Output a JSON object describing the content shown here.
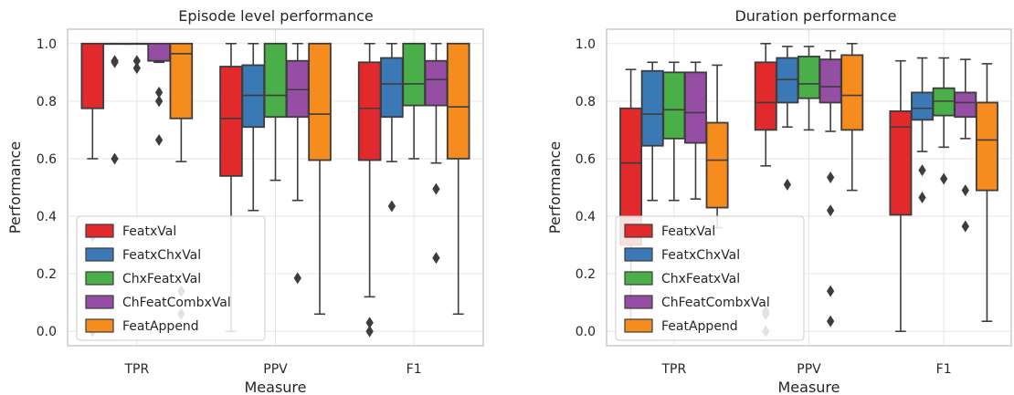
{
  "colors": {
    "FeatxVal": "#e2292c",
    "FeatxChxVal": "#3a78b6",
    "ChxFeatxVal": "#4aaf48",
    "ChFeatCombxVal": "#964ea4",
    "FeatAppend": "#f68b1e"
  },
  "chart_data": [
    {
      "type": "box",
      "title": "Episode level performance",
      "xlabel": "Measure",
      "ylabel": "Performance",
      "ylim": [
        -0.05,
        1.05
      ],
      "yticks": [
        "0.0",
        "0.2",
        "0.4",
        "0.6",
        "0.8",
        "1.0"
      ],
      "categories": [
        "TPR",
        "PPV",
        "F1"
      ],
      "legend": [
        "FeatxVal",
        "FeatxChxVal",
        "ChxFeatxVal",
        "ChFeatCombxVal",
        "FeatAppend"
      ],
      "legend_position": "lower-left",
      "grid": true,
      "series": [
        {
          "name": "FeatxVal",
          "boxes": [
            {
              "wlo": 0.6,
              "q1": 0.775,
              "med": 1.0,
              "q3": 1.0,
              "whi": 1.0,
              "fliers": [
                0.33,
                0.0
              ]
            },
            {
              "wlo": 0.0,
              "q1": 0.54,
              "med": 0.74,
              "q3": 0.92,
              "whi": 1.0,
              "fliers": []
            },
            {
              "wlo": 0.12,
              "q1": 0.595,
              "med": 0.775,
              "q3": 0.935,
              "whi": 1.0,
              "fliers": [
                0.03,
                0.0
              ]
            }
          ]
        },
        {
          "name": "FeatxChxVal",
          "boxes": [
            {
              "wlo": 1.0,
              "q1": 1.0,
              "med": 1.0,
              "q3": 1.0,
              "whi": 1.0,
              "fliers": [
                0.935,
                0.94,
                0.6
              ]
            },
            {
              "wlo": 0.42,
              "q1": 0.71,
              "med": 0.82,
              "q3": 0.925,
              "whi": 1.0,
              "fliers": []
            },
            {
              "wlo": 0.59,
              "q1": 0.745,
              "med": 0.86,
              "q3": 0.95,
              "whi": 1.0,
              "fliers": [
                0.435
              ]
            }
          ]
        },
        {
          "name": "ChxFeatxVal",
          "boxes": [
            {
              "wlo": 1.0,
              "q1": 1.0,
              "med": 1.0,
              "q3": 1.0,
              "whi": 1.0,
              "fliers": [
                0.94,
                0.915
              ]
            },
            {
              "wlo": 0.525,
              "q1": 0.745,
              "med": 0.82,
              "q3": 1.0,
              "whi": 1.0,
              "fliers": []
            },
            {
              "wlo": 0.6,
              "q1": 0.785,
              "med": 0.86,
              "q3": 1.0,
              "whi": 1.0,
              "fliers": []
            }
          ]
        },
        {
          "name": "ChFeatCombxVal",
          "boxes": [
            {
              "wlo": 0.935,
              "q1": 0.94,
              "med": 1.0,
              "q3": 1.0,
              "whi": 1.0,
              "fliers": [
                0.83,
                0.8,
                0.665
              ]
            },
            {
              "wlo": 0.455,
              "q1": 0.745,
              "med": 0.84,
              "q3": 0.94,
              "whi": 1.0,
              "fliers": [
                0.185
              ]
            },
            {
              "wlo": 0.585,
              "q1": 0.785,
              "med": 0.875,
              "q3": 0.94,
              "whi": 1.0,
              "fliers": [
                0.495,
                0.255
              ]
            }
          ]
        },
        {
          "name": "FeatAppend",
          "boxes": [
            {
              "wlo": 0.59,
              "q1": 0.74,
              "med": 0.965,
              "q3": 1.0,
              "whi": 1.0,
              "fliers": [
                0.14,
                0.06
              ]
            },
            {
              "wlo": 0.06,
              "q1": 0.595,
              "med": 0.755,
              "q3": 1.0,
              "whi": 1.0,
              "fliers": []
            },
            {
              "wlo": 0.06,
              "q1": 0.6,
              "med": 0.78,
              "q3": 1.0,
              "whi": 1.0,
              "fliers": []
            }
          ]
        }
      ]
    },
    {
      "type": "box",
      "title": "Duration performance",
      "xlabel": "Measure",
      "ylabel": "Performance",
      "ylim": [
        -0.05,
        1.05
      ],
      "yticks": [
        "0.0",
        "0.2",
        "0.4",
        "0.6",
        "0.8",
        "1.0"
      ],
      "categories": [
        "TPR",
        "PPV",
        "F1"
      ],
      "legend": [
        "FeatxVal",
        "FeatxChxVal",
        "ChxFeatxVal",
        "ChFeatCombxVal",
        "FeatAppend"
      ],
      "legend_position": "lower-left",
      "grid": true,
      "series": [
        {
          "name": "FeatxVal",
          "boxes": [
            {
              "wlo": 0.0,
              "q1": 0.3,
              "med": 0.585,
              "q3": 0.775,
              "whi": 0.91,
              "fliers": []
            },
            {
              "wlo": 0.575,
              "q1": 0.7,
              "med": 0.795,
              "q3": 0.935,
              "whi": 1.0,
              "fliers": [
                0.07,
                0.06,
                0.0
              ]
            },
            {
              "wlo": 0.0,
              "q1": 0.405,
              "med": 0.71,
              "q3": 0.765,
              "whi": 0.94,
              "fliers": []
            }
          ]
        },
        {
          "name": "FeatxChxVal",
          "boxes": [
            {
              "wlo": 0.455,
              "q1": 0.645,
              "med": 0.755,
              "q3": 0.905,
              "whi": 0.935,
              "fliers": []
            },
            {
              "wlo": 0.71,
              "q1": 0.795,
              "med": 0.875,
              "q3": 0.95,
              "whi": 0.99,
              "fliers": [
                0.51
              ]
            },
            {
              "wlo": 0.625,
              "q1": 0.735,
              "med": 0.775,
              "q3": 0.83,
              "whi": 0.95,
              "fliers": [
                0.56,
                0.465
              ]
            }
          ]
        },
        {
          "name": "ChxFeatxVal",
          "boxes": [
            {
              "wlo": 0.455,
              "q1": 0.67,
              "med": 0.77,
              "q3": 0.9,
              "whi": 0.935,
              "fliers": []
            },
            {
              "wlo": 0.7,
              "q1": 0.81,
              "med": 0.86,
              "q3": 0.955,
              "whi": 0.99,
              "fliers": []
            },
            {
              "wlo": 0.64,
              "q1": 0.75,
              "med": 0.8,
              "q3": 0.845,
              "whi": 0.95,
              "fliers": [
                0.53
              ]
            }
          ]
        },
        {
          "name": "ChFeatCombxVal",
          "boxes": [
            {
              "wlo": 0.46,
              "q1": 0.655,
              "med": 0.76,
              "q3": 0.9,
              "whi": 0.935,
              "fliers": []
            },
            {
              "wlo": 0.695,
              "q1": 0.795,
              "med": 0.85,
              "q3": 0.945,
              "whi": 0.975,
              "fliers": [
                0.535,
                0.42,
                0.14,
                0.035
              ]
            },
            {
              "wlo": 0.67,
              "q1": 0.745,
              "med": 0.795,
              "q3": 0.83,
              "whi": 0.945,
              "fliers": [
                0.49,
                0.365
              ]
            }
          ]
        },
        {
          "name": "FeatAppend",
          "boxes": [
            {
              "wlo": 0.36,
              "q1": 0.43,
              "med": 0.595,
              "q3": 0.725,
              "whi": 0.925,
              "fliers": []
            },
            {
              "wlo": 0.49,
              "q1": 0.7,
              "med": 0.82,
              "q3": 0.96,
              "whi": 1.0,
              "fliers": []
            },
            {
              "wlo": 0.035,
              "q1": 0.49,
              "med": 0.665,
              "q3": 0.795,
              "whi": 0.93,
              "fliers": []
            }
          ]
        }
      ]
    }
  ]
}
